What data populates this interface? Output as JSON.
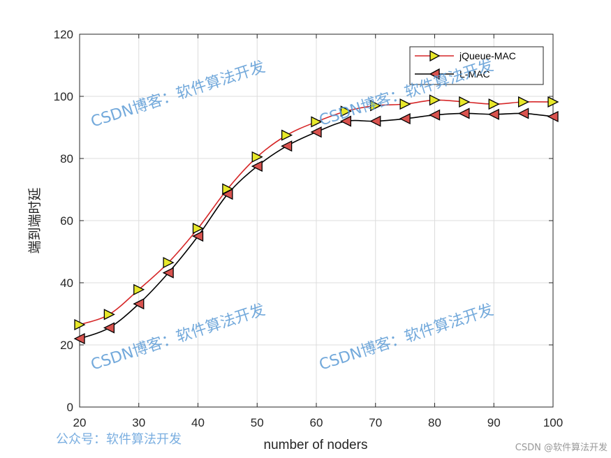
{
  "chart_data": {
    "type": "line",
    "title": "",
    "xlabel": "number of noders",
    "ylabel": "端到端时延",
    "xlim": [
      20,
      100
    ],
    "ylim": [
      0,
      120
    ],
    "xticks": [
      "20",
      "30",
      "40",
      "50",
      "60",
      "70",
      "80",
      "90",
      "100"
    ],
    "yticks": [
      "0",
      "20",
      "40",
      "60",
      "80",
      "100",
      "120"
    ],
    "grid": true,
    "legend_position": "top-right",
    "x": [
      20,
      25,
      30,
      35,
      40,
      45,
      50,
      55,
      60,
      65,
      70,
      75,
      80,
      85,
      90,
      95,
      100
    ],
    "series": [
      {
        "name": "jQueue-MAC",
        "line_color": "#d62728",
        "marker": "triangle-right",
        "marker_color": "#e8e82a",
        "values": [
          26.5,
          29.8,
          37.8,
          46.5,
          57.5,
          70.2,
          80.5,
          87.5,
          91.8,
          95.2,
          97.0,
          97.5,
          98.8,
          98.2,
          97.5,
          98.2,
          98.2
        ]
      },
      {
        "name": "L-MAC",
        "line_color": "#000000",
        "marker": "triangle-left",
        "marker_color": "#d9534f",
        "values": [
          22.0,
          25.5,
          33.2,
          43.2,
          55.0,
          68.5,
          77.5,
          84.0,
          88.5,
          92.0,
          92.0,
          92.8,
          94.0,
          94.5,
          94.2,
          94.5,
          93.5
        ]
      }
    ]
  },
  "watermarks": [
    "CSDN博客：软件算法开发",
    "CSDN博客：软件算法开发",
    "CSDN博客：软件算法开发",
    "CSDN博客：软件算法开发"
  ],
  "footer": {
    "wechat": "公众号：软件算法开发",
    "csdn": "CSDN @软件算法开发"
  }
}
